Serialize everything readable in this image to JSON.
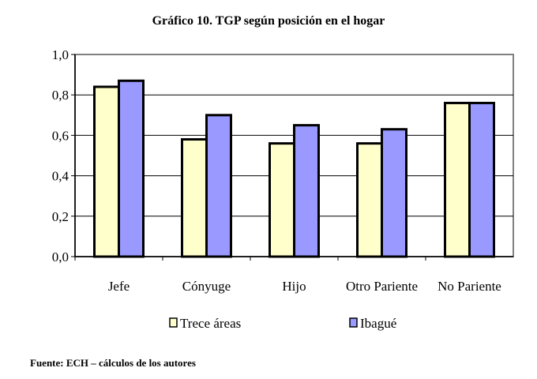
{
  "chart_data": {
    "type": "bar",
    "title": "Gráfico 10. TGP según posición en el hogar",
    "categories": [
      "Jefe",
      "Cónyuge",
      "Hijo",
      "Otro Pariente",
      "No Pariente"
    ],
    "series": [
      {
        "name": "Trece áreas",
        "values": [
          0.84,
          0.58,
          0.56,
          0.56,
          0.76
        ],
        "color": "#FFFFCC"
      },
      {
        "name": "Ibagué",
        "values": [
          0.87,
          0.7,
          0.65,
          0.63,
          0.76
        ],
        "color": "#9999FF"
      }
    ],
    "ylim": [
      0,
      1.0
    ],
    "yticks": [
      "0,0",
      "0,2",
      "0,4",
      "0,6",
      "0,8",
      "1,0"
    ],
    "grid": true,
    "legend": "bottom"
  },
  "footer": "Fuente: ECH – cálculos de los autores"
}
